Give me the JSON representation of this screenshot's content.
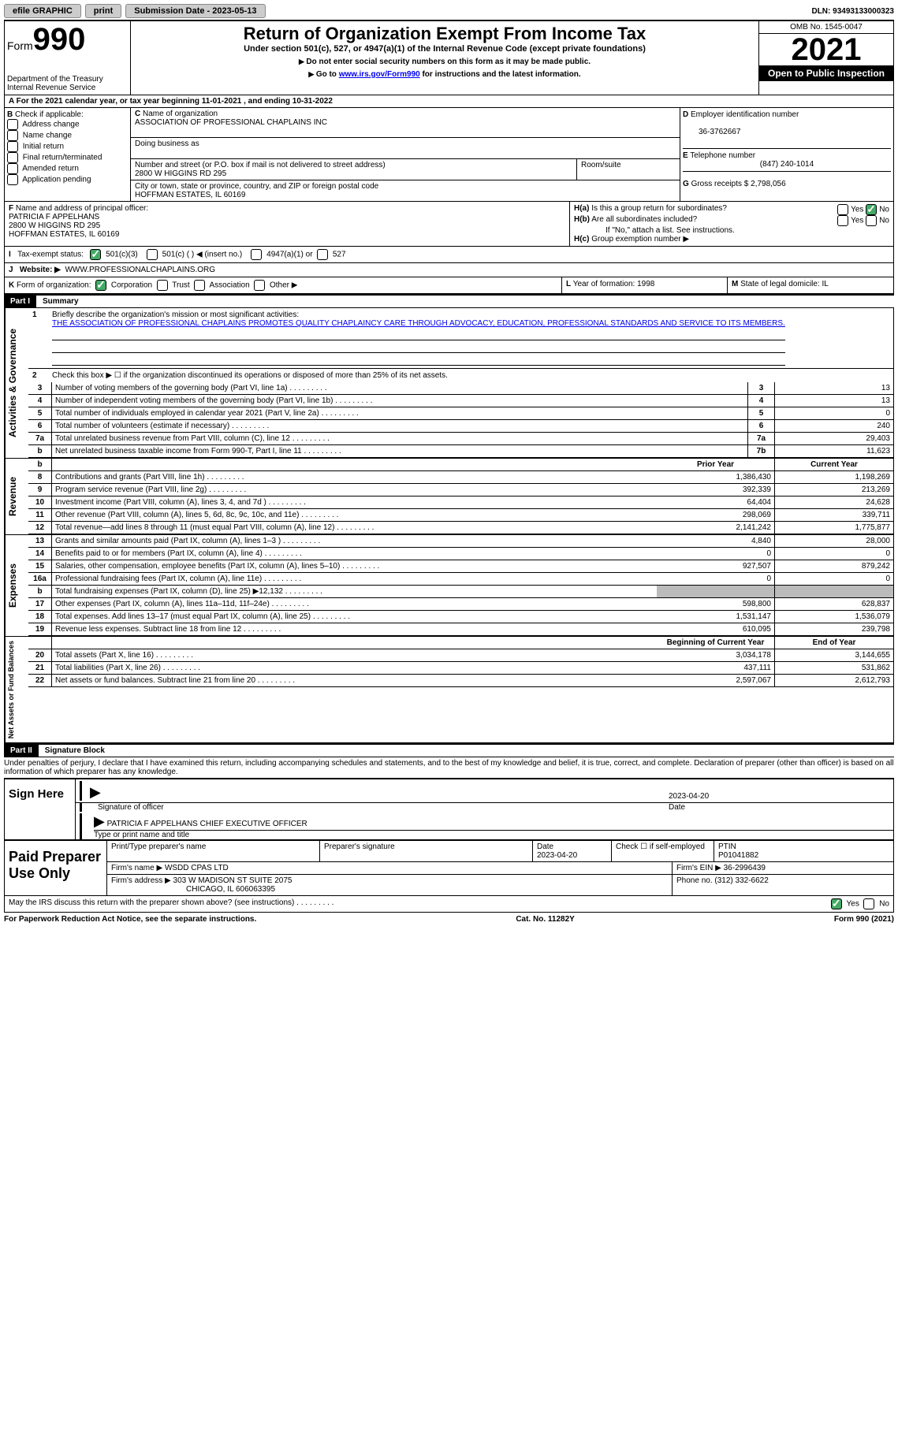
{
  "topbar": {
    "efile": "efile GRAPHIC",
    "print": "print",
    "submission_label": "Submission Date - 2023-05-13",
    "dln": "DLN: 93493133000323"
  },
  "header": {
    "form_label": "Form",
    "form_number": "990",
    "dept": "Department of the Treasury Internal Revenue Service",
    "title": "Return of Organization Exempt From Income Tax",
    "subtitle": "Under section 501(c), 527, or 4947(a)(1) of the Internal Revenue Code (except private foundations)",
    "note1": "Do not enter social security numbers on this form as it may be made public.",
    "note2_pre": "Go to ",
    "note2_link": "www.irs.gov/Form990",
    "note2_post": " for instructions and the latest information.",
    "omb": "OMB No. 1545-0047",
    "year": "2021",
    "open": "Open to Public Inspection"
  },
  "a": {
    "text": "For the 2021 calendar year, or tax year beginning 11-01-2021   , and ending 10-31-2022"
  },
  "b": {
    "label": "Check if applicable:",
    "opts": [
      "Address change",
      "Name change",
      "Initial return",
      "Final return/terminated",
      "Amended return",
      "Application pending"
    ]
  },
  "c": {
    "name_label": "Name of organization",
    "name": "ASSOCIATION OF PROFESSIONAL CHAPLAINS INC",
    "dba_label": "Doing business as",
    "addr_label": "Number and street (or P.O. box if mail is not delivered to street address)",
    "room_label": "Room/suite",
    "addr": "2800 W HIGGINS RD 295",
    "city_label": "City or town, state or province, country, and ZIP or foreign postal code",
    "city": "HOFFMAN ESTATES, IL  60169"
  },
  "d": {
    "label": "Employer identification number",
    "val": "36-3762667"
  },
  "e": {
    "label": "Telephone number",
    "val": "(847) 240-1014"
  },
  "g": {
    "label": "Gross receipts $",
    "val": "2,798,056"
  },
  "f": {
    "label": "Name and address of principal officer:",
    "name": "PATRICIA F APPELHANS",
    "addr1": "2800 W HIGGINS RD 295",
    "addr2": "HOFFMAN ESTATES, IL  60169"
  },
  "h": {
    "a": "Is this a group return for subordinates?",
    "b": "Are all subordinates included?",
    "b2": "If \"No,\" attach a list. See instructions.",
    "c": "Group exemption number ▶",
    "yes": "Yes",
    "no": "No"
  },
  "i": {
    "label": "Tax-exempt status:",
    "o1": "501(c)(3)",
    "o2": "501(c) (  ) ◀ (insert no.)",
    "o3": "4947(a)(1) or",
    "o4": "527"
  },
  "j": {
    "label": "Website: ▶",
    "val": "WWW.PROFESSIONALCHAPLAINS.ORG"
  },
  "k": {
    "label": "Form of organization:",
    "o1": "Corporation",
    "o2": "Trust",
    "o3": "Association",
    "o4": "Other ▶"
  },
  "l": {
    "label": "Year of formation:",
    "val": "1998"
  },
  "m": {
    "label": "State of legal domicile:",
    "val": "IL"
  },
  "part1": {
    "label": "Part I",
    "title": "Summary",
    "q1": "Briefly describe the organization's mission or most significant activities:",
    "mission": "THE ASSOCIATION OF PROFESSIONAL CHAPLAINS PROMOTES QUALITY CHAPLAINCY CARE THROUGH ADVOCACY, EDUCATION, PROFESSIONAL STANDARDS AND SERVICE TO ITS MEMBERS.",
    "q2": "Check this box ▶ ☐ if the organization discontinued its operations or disposed of more than 25% of its net assets.",
    "rows_ag": [
      {
        "n": "3",
        "d": "Number of voting members of the governing body (Part VI, line 1a)",
        "box": "3",
        "v": "13"
      },
      {
        "n": "4",
        "d": "Number of independent voting members of the governing body (Part VI, line 1b)",
        "box": "4",
        "v": "13"
      },
      {
        "n": "5",
        "d": "Total number of individuals employed in calendar year 2021 (Part V, line 2a)",
        "box": "5",
        "v": "0"
      },
      {
        "n": "6",
        "d": "Total number of volunteers (estimate if necessary)",
        "box": "6",
        "v": "240"
      },
      {
        "n": "7a",
        "d": "Total unrelated business revenue from Part VIII, column (C), line 12",
        "box": "7a",
        "v": "29,403"
      },
      {
        "n": "b",
        "d": "Net unrelated business taxable income from Form 990-T, Part I, line 11",
        "box": "7b",
        "v": "11,623"
      }
    ],
    "h_prior": "Prior Year",
    "h_current": "Current Year",
    "rows_rev": [
      {
        "n": "8",
        "d": "Contributions and grants (Part VIII, line 1h)",
        "v1": "1,386,430",
        "v2": "1,198,269"
      },
      {
        "n": "9",
        "d": "Program service revenue (Part VIII, line 2g)",
        "v1": "392,339",
        "v2": "213,269"
      },
      {
        "n": "10",
        "d": "Investment income (Part VIII, column (A), lines 3, 4, and 7d )",
        "v1": "64,404",
        "v2": "24,628"
      },
      {
        "n": "11",
        "d": "Other revenue (Part VIII, column (A), lines 5, 6d, 8c, 9c, 10c, and 11e)",
        "v1": "298,069",
        "v2": "339,711"
      },
      {
        "n": "12",
        "d": "Total revenue—add lines 8 through 11 (must equal Part VIII, column (A), line 12)",
        "v1": "2,141,242",
        "v2": "1,775,877"
      }
    ],
    "rows_exp": [
      {
        "n": "13",
        "d": "Grants and similar amounts paid (Part IX, column (A), lines 1–3 )",
        "v1": "4,840",
        "v2": "28,000"
      },
      {
        "n": "14",
        "d": "Benefits paid to or for members (Part IX, column (A), line 4)",
        "v1": "0",
        "v2": "0"
      },
      {
        "n": "15",
        "d": "Salaries, other compensation, employee benefits (Part IX, column (A), lines 5–10)",
        "v1": "927,507",
        "v2": "879,242"
      },
      {
        "n": "16a",
        "d": "Professional fundraising fees (Part IX, column (A), line 11e)",
        "v1": "0",
        "v2": "0"
      },
      {
        "n": "b",
        "d": "Total fundraising expenses (Part IX, column (D), line 25) ▶12,132",
        "v1": "grey",
        "v2": "grey"
      },
      {
        "n": "17",
        "d": "Other expenses (Part IX, column (A), lines 11a–11d, 11f–24e)",
        "v1": "598,800",
        "v2": "628,837"
      },
      {
        "n": "18",
        "d": "Total expenses. Add lines 13–17 (must equal Part IX, column (A), line 25)",
        "v1": "1,531,147",
        "v2": "1,536,079"
      },
      {
        "n": "19",
        "d": "Revenue less expenses. Subtract line 18 from line 12",
        "v1": "610,095",
        "v2": "239,798"
      }
    ],
    "h_beg": "Beginning of Current Year",
    "h_end": "End of Year",
    "rows_na": [
      {
        "n": "20",
        "d": "Total assets (Part X, line 16)",
        "v1": "3,034,178",
        "v2": "3,144,655"
      },
      {
        "n": "21",
        "d": "Total liabilities (Part X, line 26)",
        "v1": "437,111",
        "v2": "531,862"
      },
      {
        "n": "22",
        "d": "Net assets or fund balances. Subtract line 21 from line 20",
        "v1": "2,597,067",
        "v2": "2,612,793"
      }
    ],
    "v_ag": "Activities & Governance",
    "v_rev": "Revenue",
    "v_exp": "Expenses",
    "v_na": "Net Assets or Fund Balances"
  },
  "part2": {
    "label": "Part II",
    "title": "Signature Block",
    "jurat": "Under penalties of perjury, I declare that I have examined this return, including accompanying schedules and statements, and to the best of my knowledge and belief, it is true, correct, and complete. Declaration of preparer (other than officer) is based on all information of which preparer has any knowledge.",
    "sign_here": "Sign Here",
    "sig_officer": "Signature of officer",
    "date": "Date",
    "sig_date": "2023-04-20",
    "name_title": "PATRICIA F APPELHANS  CHIEF EXECUTIVE OFFICER",
    "type_name": "Type or print name and title",
    "paid": "Paid Preparer Use Only",
    "p_name_label": "Print/Type preparer's name",
    "p_sig_label": "Preparer's signature",
    "p_date_label": "Date",
    "p_date": "2023-04-20",
    "p_check": "Check ☐ if self-employed",
    "ptin_label": "PTIN",
    "ptin": "P01041882",
    "firm_name_label": "Firm's name    ▶",
    "firm_name": "WSDD CPAS LTD",
    "firm_ein_label": "Firm's EIN ▶",
    "firm_ein": "36-2996439",
    "firm_addr_label": "Firm's address ▶",
    "firm_addr": "303 W MADISON ST SUITE 2075",
    "firm_city": "CHICAGO, IL  606063395",
    "phone_label": "Phone no.",
    "phone": "(312) 332-6622",
    "discuss": "May the IRS discuss this return with the preparer shown above? (see instructions)"
  },
  "footer": {
    "pra": "For Paperwork Reduction Act Notice, see the separate instructions.",
    "cat": "Cat. No. 11282Y",
    "form": "Form 990 (2021)"
  }
}
